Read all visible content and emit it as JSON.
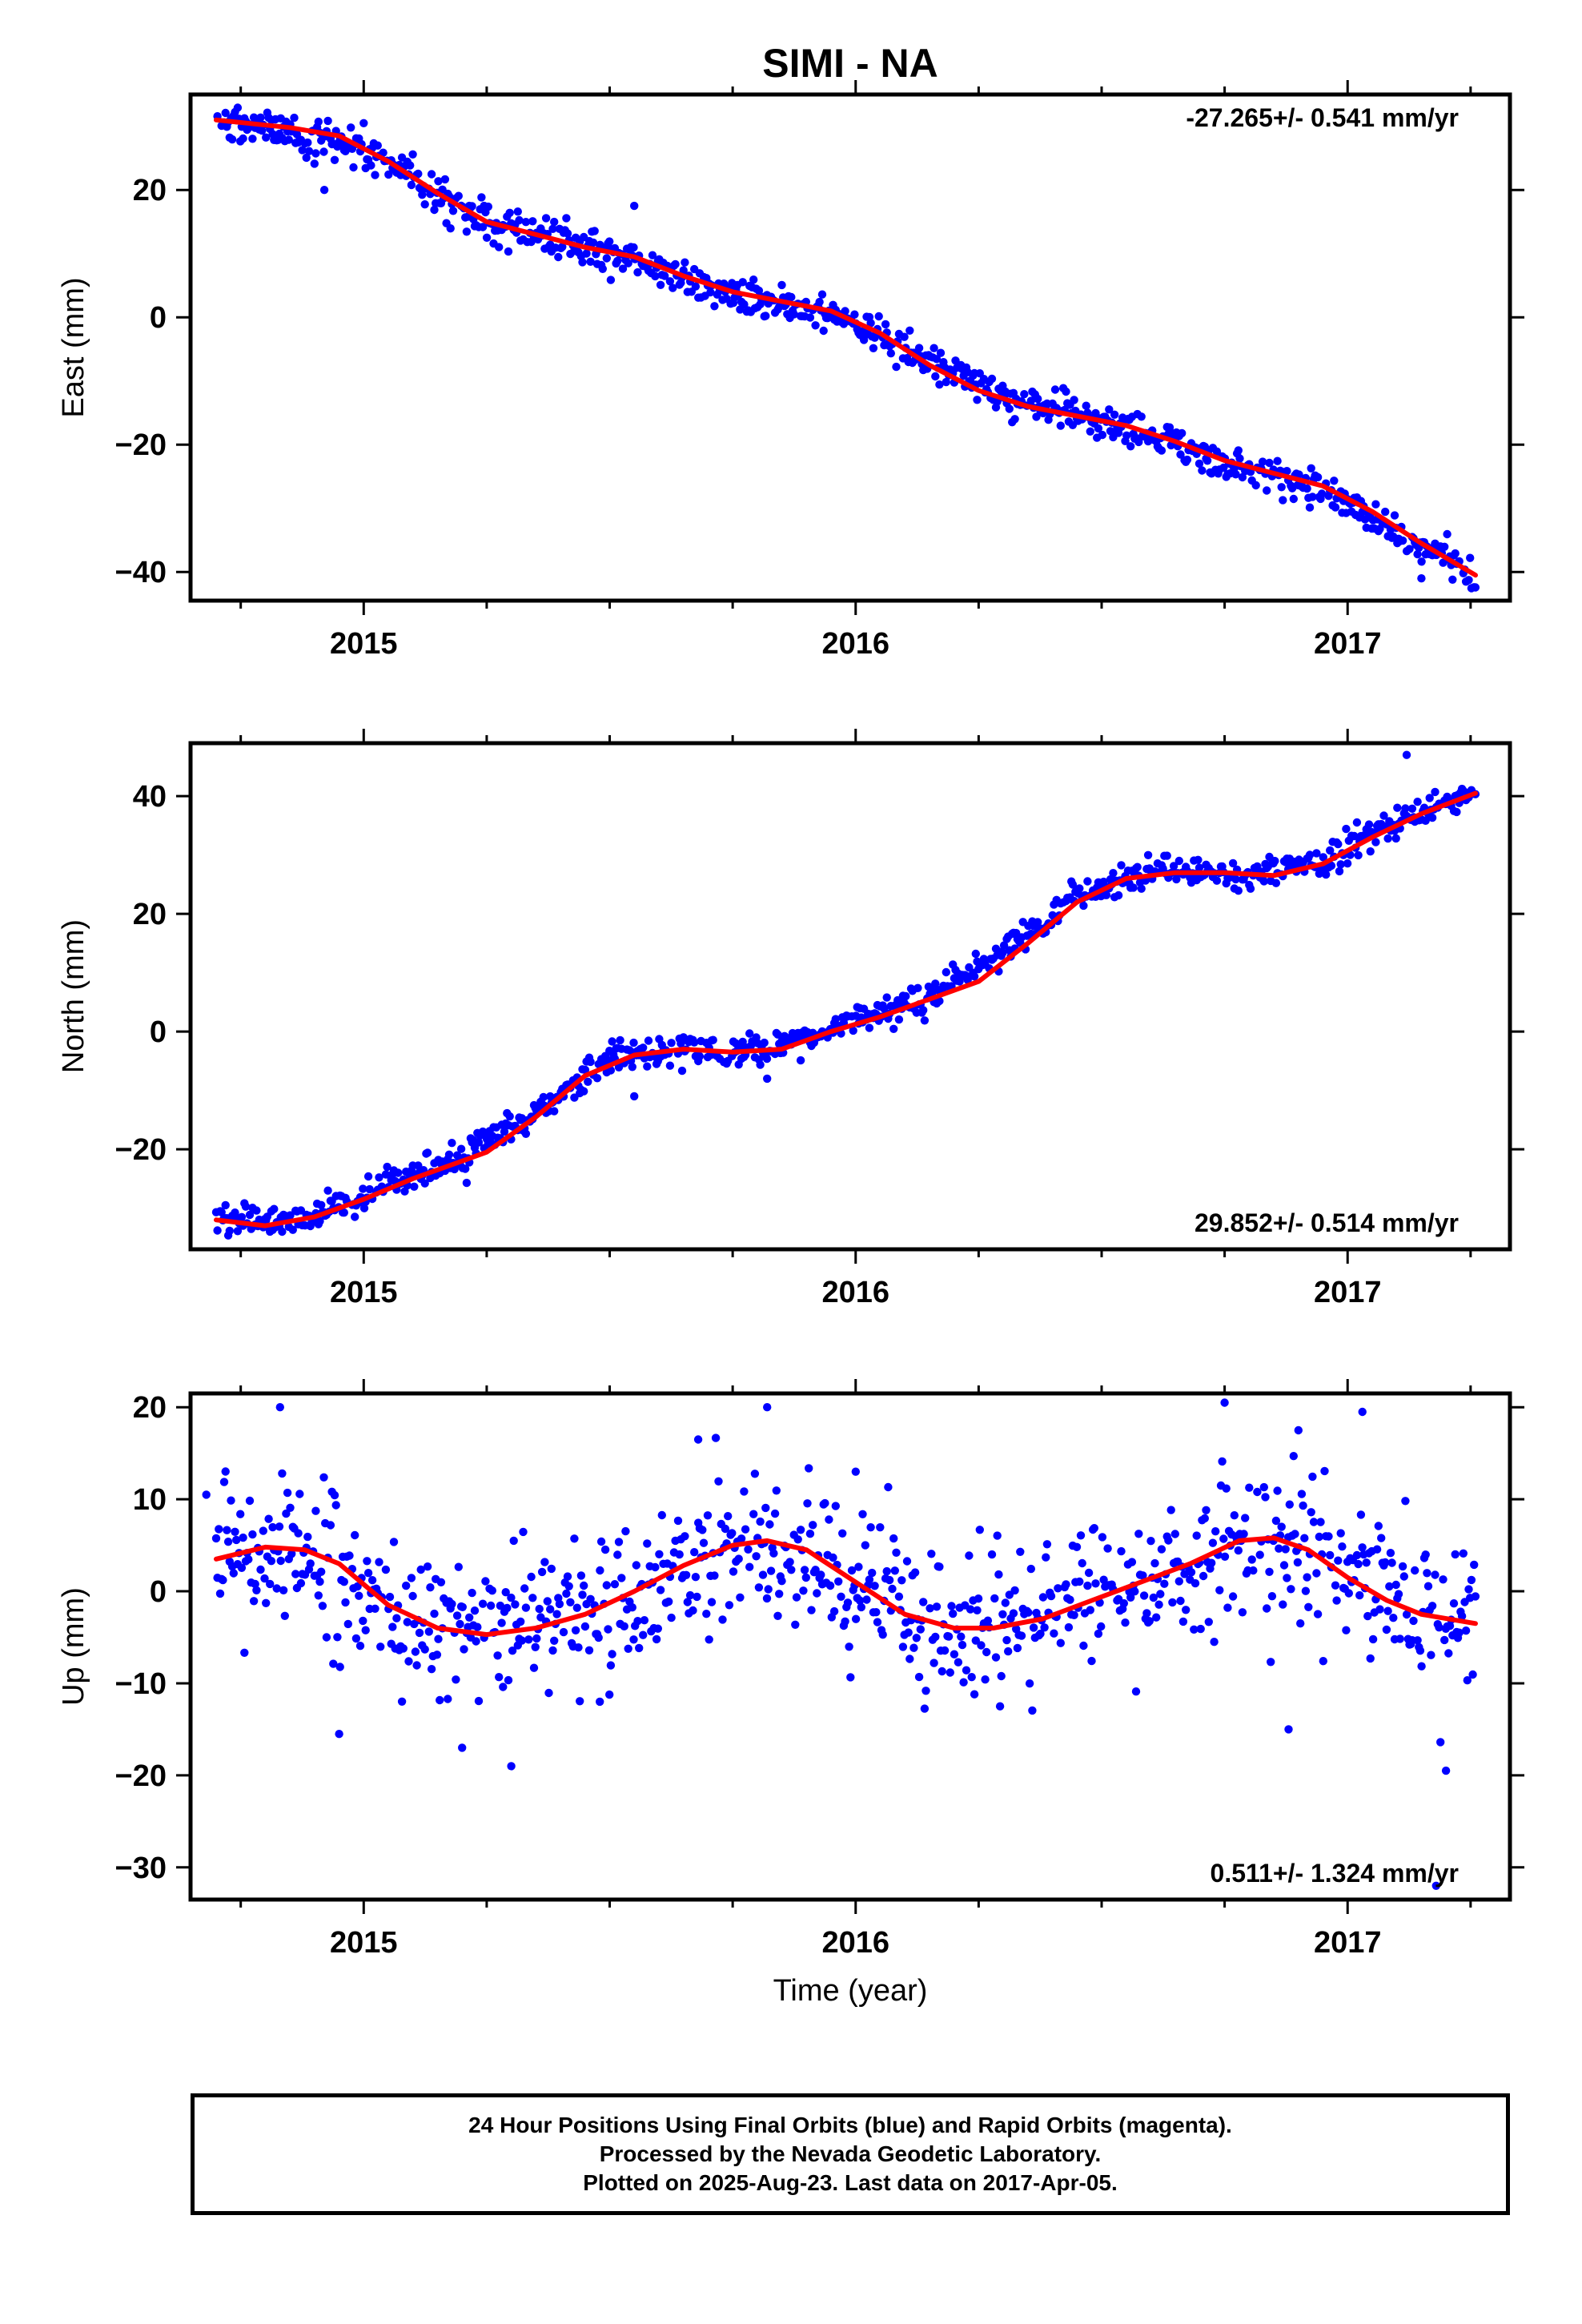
{
  "title": "SIMI - NA",
  "colors": {
    "final_orbits": "#0000ff",
    "model_fit": "#ff0000",
    "axes": "#000000"
  },
  "chart_data": [
    {
      "type": "scatter",
      "name": "east",
      "title": "SIMI - NA",
      "xlabel": "",
      "ylabel": "East (mm)",
      "xlim": [
        2014.648,
        2017.33
      ],
      "ylim": [
        -44.5,
        35
      ],
      "x_ticks": [
        2015,
        2016,
        2017
      ],
      "x_tick_labels": [
        "2015",
        "2016",
        "2017"
      ],
      "y_ticks": [
        -40,
        -20,
        0,
        20
      ],
      "y_tick_labels": [
        "−40",
        "−20",
        "0",
        "20"
      ],
      "rate_label": "-27.265+/- 0.541 mm/yr",
      "rate_position": "top-right",
      "series": [
        {
          "kind": "points",
          "trend": [
            [
              2014.7,
              31.0
            ],
            [
              2015.0,
              26.5
            ],
            [
              2015.25,
              14.5
            ],
            [
              2015.55,
              9.0
            ],
            [
              2015.75,
              3.5
            ],
            [
              2015.95,
              0.5
            ],
            [
              2016.15,
              -6.5
            ],
            [
              2016.3,
              -12.5
            ],
            [
              2016.55,
              -17.0
            ],
            [
              2016.75,
              -23.0
            ],
            [
              2016.95,
              -27.0
            ],
            [
              2017.1,
              -34.0
            ],
            [
              2017.26,
              -40.5
            ]
          ],
          "scatter_sd": 1.4,
          "outliers": [
            [
              2014.92,
              20.0
            ],
            [
              2015.0,
              30.5
            ],
            [
              2015.55,
              17.5
            ],
            [
              2017.15,
              -41.0
            ]
          ]
        },
        {
          "kind": "fit",
          "values": [
            [
              2014.7,
              31.0
            ],
            [
              2014.85,
              29.8
            ],
            [
              2014.95,
              28.5
            ],
            [
              2015.05,
              24.5
            ],
            [
              2015.15,
              19.5
            ],
            [
              2015.25,
              15.0
            ],
            [
              2015.35,
              13.0
            ],
            [
              2015.45,
              11.0
            ],
            [
              2015.55,
              9.5
            ],
            [
              2015.65,
              6.5
            ],
            [
              2015.75,
              4.0
            ],
            [
              2015.85,
              2.5
            ],
            [
              2015.95,
              1.0
            ],
            [
              2016.05,
              -2.5
            ],
            [
              2016.15,
              -7.5
            ],
            [
              2016.25,
              -11.5
            ],
            [
              2016.35,
              -14.0
            ],
            [
              2016.45,
              -15.5
            ],
            [
              2016.55,
              -17.0
            ],
            [
              2016.65,
              -19.5
            ],
            [
              2016.75,
              -22.5
            ],
            [
              2016.85,
              -24.5
            ],
            [
              2016.95,
              -26.5
            ],
            [
              2017.05,
              -30.5
            ],
            [
              2017.15,
              -35.5
            ],
            [
              2017.26,
              -40.5
            ]
          ]
        }
      ]
    },
    {
      "type": "scatter",
      "name": "north",
      "xlabel": "",
      "ylabel": "North (mm)",
      "xlim": [
        2014.648,
        2017.33
      ],
      "ylim": [
        -37,
        49
      ],
      "x_ticks": [
        2015,
        2016,
        2017
      ],
      "x_tick_labels": [
        "2015",
        "2016",
        "2017"
      ],
      "y_ticks": [
        -20,
        0,
        20,
        40
      ],
      "y_tick_labels": [
        "−20",
        "0",
        "20",
        "40"
      ],
      "rate_label": "29.852+/- 0.514 mm/yr",
      "rate_position": "bottom-right",
      "series": [
        {
          "kind": "points",
          "trend": [
            [
              2014.7,
              -32.0
            ],
            [
              2014.85,
              -32.5
            ],
            [
              2015.0,
              -27.5
            ],
            [
              2015.2,
              -21.5
            ],
            [
              2015.35,
              -14.0
            ],
            [
              2015.5,
              -4.5
            ],
            [
              2015.65,
              -3.0
            ],
            [
              2015.8,
              -3.5
            ],
            [
              2015.95,
              0.5
            ],
            [
              2016.15,
              6.0
            ],
            [
              2016.3,
              14.0
            ],
            [
              2016.45,
              23.0
            ],
            [
              2016.6,
              27.5
            ],
            [
              2016.8,
              26.5
            ],
            [
              2016.95,
              29.0
            ],
            [
              2017.1,
              35.5
            ],
            [
              2017.26,
              41.0
            ]
          ],
          "scatter_sd": 1.3,
          "outliers": [
            [
              2015.55,
              -11.0
            ],
            [
              2015.82,
              -8.0
            ],
            [
              2017.12,
              47.0
            ],
            [
              2015.07,
              -24.0
            ]
          ]
        },
        {
          "kind": "fit",
          "values": [
            [
              2014.7,
              -32.0
            ],
            [
              2014.8,
              -33.0
            ],
            [
              2014.9,
              -31.5
            ],
            [
              2015.0,
              -28.5
            ],
            [
              2015.1,
              -25.0
            ],
            [
              2015.2,
              -22.0
            ],
            [
              2015.25,
              -20.5
            ],
            [
              2015.35,
              -14.5
            ],
            [
              2015.45,
              -7.5
            ],
            [
              2015.55,
              -4.0
            ],
            [
              2015.65,
              -3.0
            ],
            [
              2015.75,
              -3.5
            ],
            [
              2015.85,
              -3.0
            ],
            [
              2015.95,
              0.0
            ],
            [
              2016.05,
              2.5
            ],
            [
              2016.15,
              5.5
            ],
            [
              2016.25,
              8.5
            ],
            [
              2016.35,
              15.0
            ],
            [
              2016.45,
              22.0
            ],
            [
              2016.55,
              26.0
            ],
            [
              2016.65,
              27.0
            ],
            [
              2016.75,
              27.0
            ],
            [
              2016.85,
              26.5
            ],
            [
              2016.95,
              28.5
            ],
            [
              2017.05,
              33.0
            ],
            [
              2017.15,
              37.0
            ],
            [
              2017.26,
              40.5
            ]
          ]
        }
      ]
    },
    {
      "type": "scatter",
      "name": "up",
      "xlabel": "Time (year)",
      "ylabel": "Up (mm)",
      "xlim": [
        2014.648,
        2017.33
      ],
      "ylim": [
        -33.5,
        21.5
      ],
      "x_ticks": [
        2015,
        2016,
        2017
      ],
      "x_tick_labels": [
        "2015",
        "2016",
        "2017"
      ],
      "y_ticks": [
        -30,
        -20,
        -10,
        0,
        10,
        20
      ],
      "y_tick_labels": [
        "−30",
        "−20",
        "−10",
        "0",
        "10",
        "20"
      ],
      "rate_label": "0.511+/- 1.324 mm/yr",
      "rate_position": "bottom-right",
      "series": [
        {
          "kind": "points",
          "trend": [
            [
              2014.7,
              3.5
            ],
            [
              2014.85,
              5.0
            ],
            [
              2015.0,
              1.0
            ],
            [
              2015.1,
              -3.0
            ],
            [
              2015.25,
              -4.5
            ],
            [
              2015.4,
              -3.0
            ],
            [
              2015.55,
              0.0
            ],
            [
              2015.7,
              3.5
            ],
            [
              2015.82,
              5.5
            ],
            [
              2015.95,
              2.5
            ],
            [
              2016.1,
              -2.5
            ],
            [
              2016.25,
              -4.0
            ],
            [
              2016.4,
              -3.0
            ],
            [
              2016.55,
              0.0
            ],
            [
              2016.7,
              3.0
            ],
            [
              2016.82,
              5.8
            ],
            [
              2016.95,
              4.0
            ],
            [
              2017.05,
              0.0
            ],
            [
              2017.15,
              -2.5
            ],
            [
              2017.26,
              -3.5
            ]
          ],
          "scatter_sd": 4.0,
          "outliers": [
            [
              2014.68,
              10.5
            ],
            [
              2014.83,
              20.0
            ],
            [
              2014.95,
              -15.5
            ],
            [
              2015.2,
              -17.0
            ],
            [
              2015.3,
              -19.0
            ],
            [
              2015.48,
              -12.0
            ],
            [
              2015.68,
              16.5
            ],
            [
              2015.82,
              20.0
            ],
            [
              2016.0,
              13.0
            ],
            [
              2016.75,
              20.5
            ],
            [
              2016.9,
              17.5
            ],
            [
              2016.88,
              -15.0
            ],
            [
              2017.03,
              19.5
            ],
            [
              2017.18,
              -32.0
            ],
            [
              2017.2,
              -19.5
            ]
          ]
        },
        {
          "kind": "fit",
          "values": [
            [
              2014.7,
              3.5
            ],
            [
              2014.8,
              4.8
            ],
            [
              2014.88,
              4.5
            ],
            [
              2014.95,
              3.0
            ],
            [
              2015.05,
              -1.5
            ],
            [
              2015.15,
              -4.0
            ],
            [
              2015.25,
              -4.7
            ],
            [
              2015.35,
              -4.0
            ],
            [
              2015.45,
              -2.5
            ],
            [
              2015.55,
              0.0
            ],
            [
              2015.65,
              2.8
            ],
            [
              2015.75,
              5.0
            ],
            [
              2015.82,
              5.5
            ],
            [
              2015.9,
              4.5
            ],
            [
              2016.0,
              1.0
            ],
            [
              2016.1,
              -2.5
            ],
            [
              2016.2,
              -4.0
            ],
            [
              2016.28,
              -4.0
            ],
            [
              2016.38,
              -3.0
            ],
            [
              2016.48,
              -1.0
            ],
            [
              2016.58,
              1.0
            ],
            [
              2016.68,
              3.0
            ],
            [
              2016.78,
              5.5
            ],
            [
              2016.85,
              5.8
            ],
            [
              2016.92,
              4.5
            ],
            [
              2017.0,
              1.5
            ],
            [
              2017.08,
              -1.0
            ],
            [
              2017.15,
              -2.5
            ],
            [
              2017.26,
              -3.5
            ]
          ]
        }
      ]
    }
  ],
  "footer": {
    "line1": "24 Hour Positions Using Final Orbits (blue) and Rapid Orbits (magenta).",
    "line2": "Processed by the Nevada Geodetic Laboratory.",
    "line3": "Plotted on 2025-Aug-23. Last data on 2017-Apr-05."
  }
}
